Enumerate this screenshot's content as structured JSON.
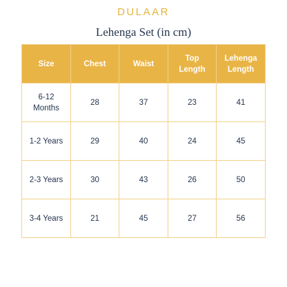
{
  "brand": "DULAAR",
  "title": "Lehenga Set (in cm)",
  "colors": {
    "accent": "#E9B446",
    "brand_text": "#E3B53B",
    "body_text": "#24344E",
    "border": "#F1D189"
  },
  "table": {
    "headers": [
      {
        "line1": "Size",
        "line2": ""
      },
      {
        "line1": "Chest",
        "line2": ""
      },
      {
        "line1": "Waist",
        "line2": ""
      },
      {
        "line1": "Top",
        "line2": "Length"
      },
      {
        "line1": "Lehenga",
        "line2": "Length"
      }
    ],
    "rows": [
      {
        "size_line1": "6-12",
        "size_line2": "Months",
        "chest": "28",
        "waist": "37",
        "top_length": "23",
        "lehenga_length": "41"
      },
      {
        "size_line1": "1-2 Years",
        "size_line2": "",
        "chest": "29",
        "waist": "40",
        "top_length": "24",
        "lehenga_length": "45"
      },
      {
        "size_line1": "2-3 Years",
        "size_line2": "",
        "chest": "30",
        "waist": "43",
        "top_length": "26",
        "lehenga_length": "50"
      },
      {
        "size_line1": "3-4 Years",
        "size_line2": "",
        "chest": "21",
        "waist": "45",
        "top_length": "27",
        "lehenga_length": "56"
      }
    ]
  }
}
